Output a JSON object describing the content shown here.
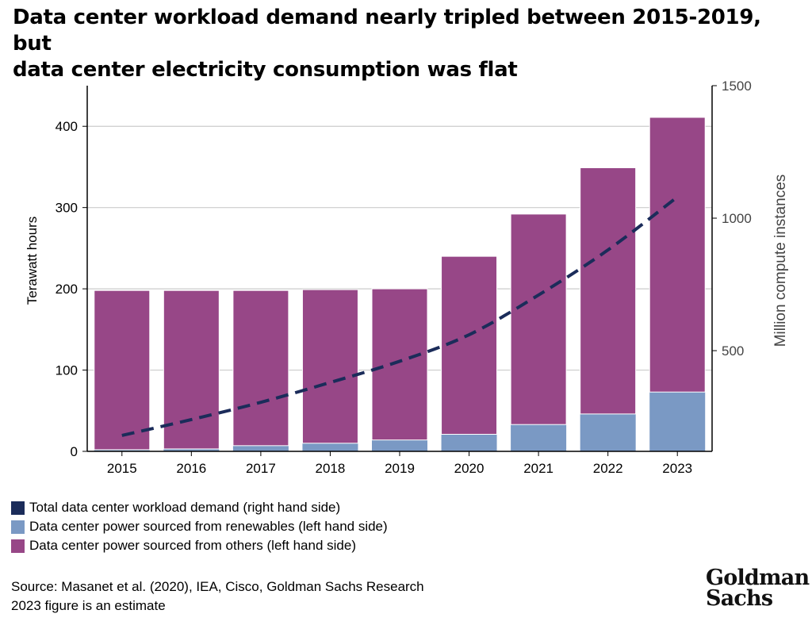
{
  "title": {
    "line1": "Data center workload demand nearly tripled between 2015-2019, but",
    "line2": "data center electricity consumption was flat"
  },
  "colors": {
    "renewables": "#7a99c4",
    "others": "#974787",
    "demand_line": "#1b2c5a",
    "grid": "#cccccc",
    "axis": "#000000"
  },
  "chart_data": {
    "type": "bar",
    "categories": [
      "2015",
      "2016",
      "2017",
      "2018",
      "2019",
      "2020",
      "2021",
      "2022",
      "2023"
    ],
    "series": [
      {
        "name": "Data center power sourced from renewables (left hand side)",
        "kind": "stacked-bar",
        "axis": "left",
        "values": [
          2,
          3,
          7,
          10,
          14,
          21,
          33,
          46,
          73
        ]
      },
      {
        "name": "Data center power sourced from others (left hand side)",
        "kind": "stacked-bar",
        "axis": "left",
        "values": [
          196,
          195,
          191,
          189,
          186,
          219,
          259,
          303,
          338
        ]
      },
      {
        "name": "Total data center workload demand (right hand side)",
        "kind": "dashed-line",
        "axis": "right",
        "values": [
          180,
          240,
          305,
          380,
          460,
          560,
          710,
          880,
          1080
        ]
      }
    ],
    "ylabel": "Terawatt hours",
    "y2label": "Million compute instances",
    "ylim": [
      0,
      450
    ],
    "y2lim": [
      120,
      1500
    ],
    "yticks": [
      "0",
      "100",
      "200",
      "300",
      "400"
    ],
    "y2ticks": [
      "500",
      "1000",
      "1500"
    ],
    "grid": true
  },
  "legend": [
    {
      "label": "Total data center workload demand (right hand side)",
      "color": "#1b2c5a"
    },
    {
      "label": "Data center power sourced from renewables (left hand side)",
      "color": "#7a99c4"
    },
    {
      "label": "Data center power sourced from others (left hand side)",
      "color": "#974787"
    }
  ],
  "footer": {
    "source": "Source: Masanet et al. (2020), IEA, Cisco, Goldman Sachs Research",
    "note": "2023 figure is an estimate"
  },
  "logo": {
    "line1": "Goldman",
    "line2": "Sachs"
  }
}
